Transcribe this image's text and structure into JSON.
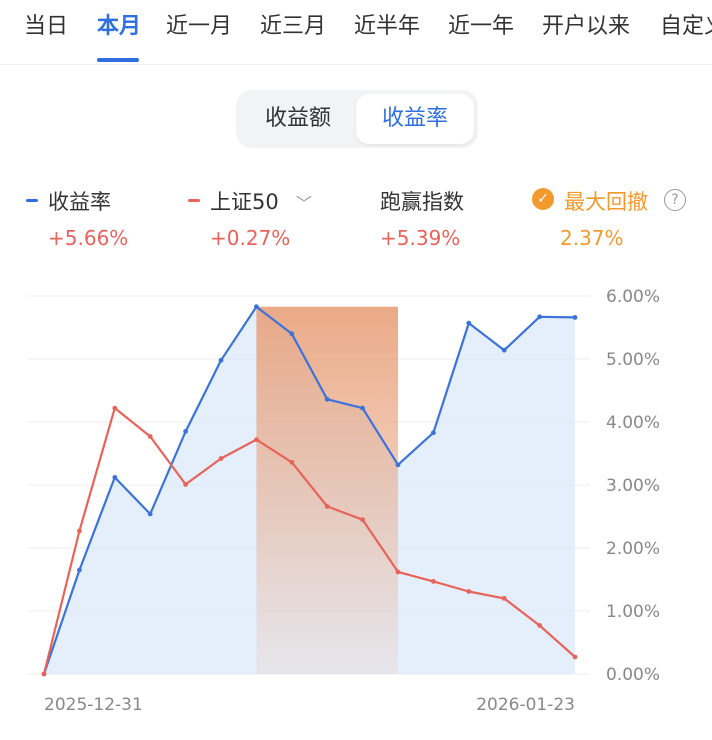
{
  "tabs": [
    "当日",
    "本月",
    "近一月",
    "近三月",
    "近半年",
    "近一年",
    "开户以来",
    "自定义"
  ],
  "active_tab": "本月",
  "segment": {
    "options": [
      "收益额",
      "收益率"
    ],
    "selected": "收益率"
  },
  "legend": [
    {
      "label": "收益率",
      "value": "+5.66%",
      "color": "#2f6fe0"
    },
    {
      "label": "上证50",
      "value": "+0.27%",
      "color": "#e8635a"
    },
    {
      "label": "跑赢指数",
      "value": "+5.39%"
    },
    {
      "label": "最大回撤",
      "value": "2.37%",
      "color": "#f39a2e"
    }
  ],
  "colors": {
    "accent": "#2f6fe0",
    "benchmark": "#e8635a",
    "drawdown": "#f39a2e",
    "up": "#e8635a"
  },
  "chart_data": {
    "type": "line",
    "xlabel": "",
    "ylabel": "",
    "x_tick_labels": [
      "2025-12-31",
      "2026-01-23"
    ],
    "y_ticks": [
      "0.00%",
      "1.00%",
      "2.00%",
      "3.00%",
      "4.00%",
      "5.00%",
      "6.00%"
    ],
    "ylim": [
      0,
      6
    ],
    "grid": true,
    "series": [
      {
        "name": "收益率",
        "values": [
          0.0,
          1.65,
          3.12,
          2.54,
          3.85,
          4.98,
          5.83,
          5.4,
          4.36,
          4.22,
          3.32,
          3.83,
          5.57,
          5.14,
          5.67,
          5.66
        ]
      },
      {
        "name": "上证50",
        "values": [
          0.0,
          2.27,
          4.22,
          3.77,
          3.01,
          3.42,
          3.72,
          3.36,
          2.66,
          2.45,
          1.62,
          1.47,
          1.31,
          1.2,
          0.77,
          0.27
        ]
      }
    ],
    "max_drawdown": {
      "label": "最大回撤",
      "value": 2.37,
      "from_index": 6,
      "to_index": 10
    }
  }
}
